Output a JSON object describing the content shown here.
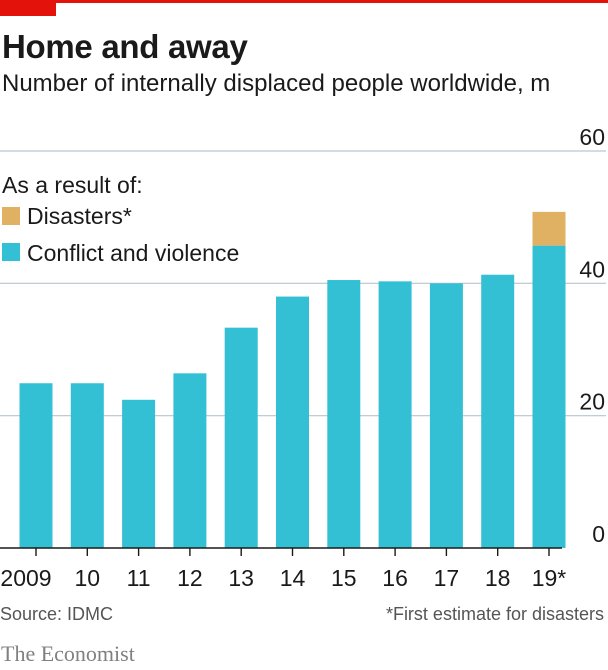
{
  "title": "Home and away",
  "subtitle": "Number of internally displaced people worldwide, m",
  "legend": {
    "heading": "As a result of:",
    "items": [
      {
        "label": "Disasters*",
        "color": "#e0b063"
      },
      {
        "label": "Conflict and violence",
        "color": "#33c0d4"
      }
    ]
  },
  "source": "Source: IDMC",
  "footnote": "*First estimate for disasters",
  "brand": "The Economist",
  "chart_data": {
    "type": "bar",
    "stacked": true,
    "categories": [
      "2009",
      "10",
      "11",
      "12",
      "13",
      "14",
      "15",
      "16",
      "17",
      "18",
      "19*"
    ],
    "series": [
      {
        "name": "Conflict and violence",
        "color": "#33c0d4",
        "values": [
          24.9,
          24.9,
          22.4,
          26.4,
          33.3,
          38.0,
          40.5,
          40.3,
          40.0,
          41.3,
          45.7
        ]
      },
      {
        "name": "Disasters*",
        "color": "#e0b063",
        "values": [
          0,
          0,
          0,
          0,
          0,
          0,
          0,
          0,
          0,
          0,
          5.1
        ]
      }
    ],
    "yticks": [
      0,
      20,
      40,
      60
    ],
    "ylim": [
      0,
      60
    ],
    "grid": true,
    "legend_position": "top-left"
  }
}
